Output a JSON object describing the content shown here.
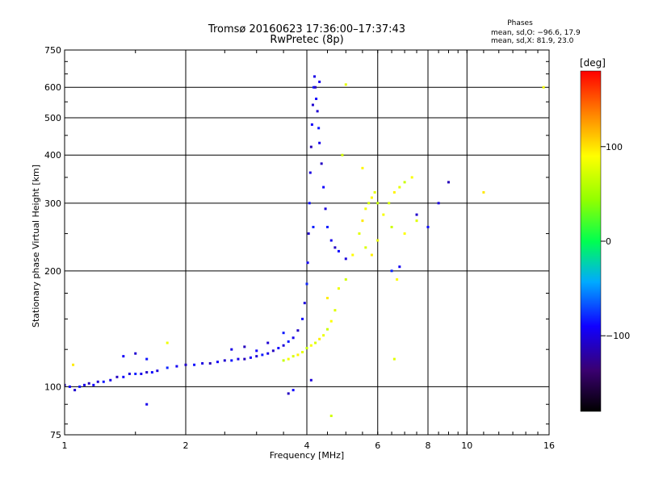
{
  "chart_data": {
    "type": "scatter",
    "title": "Tromsø 20160623 17:36:00–17:37:43",
    "subtitle": "RwPretec (8p)",
    "xlabel": "Frequency [MHz]",
    "ylabel": "Stationary phase Virtual Height [km]",
    "x_scale": "log",
    "y_scale": "log",
    "xlim": [
      1,
      16
    ],
    "ylim": [
      75,
      750
    ],
    "x_ticks": [
      1,
      2,
      4,
      6,
      8,
      10,
      16
    ],
    "x_tick_labels": [
      "1",
      "2",
      "4",
      "6",
      "8",
      "10",
      "16"
    ],
    "y_ticks": [
      75,
      100,
      200,
      300,
      400,
      500,
      600,
      750
    ],
    "y_tick_labels": [
      "75",
      "100",
      "200",
      "300",
      "400",
      "500",
      "600",
      "750"
    ],
    "grid": true,
    "stats_header": "Phases",
    "stats_lines": [
      "mean, sd,O: −96.6, 17.9",
      "mean, sd,X: 81.9, 23.0"
    ],
    "colorbar": {
      "title": "[deg]",
      "range": [
        -180,
        180
      ],
      "ticks": [
        100,
        0,
        -100
      ],
      "tick_labels": [
        "100",
        "0",
        "−100"
      ],
      "colormap": "rainbow"
    },
    "series": [
      {
        "mode": "O",
        "phase_mean": -96.6,
        "points": [
          [
            1.0,
            101
          ],
          [
            1.03,
            100
          ],
          [
            1.06,
            98
          ],
          [
            1.09,
            100
          ],
          [
            1.12,
            101
          ],
          [
            1.15,
            102
          ],
          [
            1.18,
            101
          ],
          [
            1.21,
            103
          ],
          [
            1.25,
            103
          ],
          [
            1.3,
            104
          ],
          [
            1.35,
            106
          ],
          [
            1.4,
            106
          ],
          [
            1.45,
            108
          ],
          [
            1.5,
            108
          ],
          [
            1.55,
            108
          ],
          [
            1.6,
            109
          ],
          [
            1.65,
            109
          ],
          [
            1.7,
            110
          ],
          [
            1.8,
            112
          ],
          [
            1.9,
            113
          ],
          [
            2.0,
            114
          ],
          [
            2.1,
            114
          ],
          [
            2.2,
            115
          ],
          [
            2.3,
            115
          ],
          [
            2.4,
            116
          ],
          [
            2.5,
            117
          ],
          [
            2.6,
            117
          ],
          [
            2.7,
            118
          ],
          [
            2.8,
            118
          ],
          [
            2.9,
            119
          ],
          [
            3.0,
            120
          ],
          [
            3.1,
            121
          ],
          [
            3.2,
            122
          ],
          [
            3.3,
            124
          ],
          [
            3.4,
            126
          ],
          [
            3.5,
            128
          ],
          [
            3.6,
            131
          ],
          [
            3.7,
            134
          ],
          [
            3.8,
            140
          ],
          [
            3.9,
            150
          ],
          [
            3.95,
            165
          ],
          [
            4.0,
            185
          ],
          [
            4.02,
            210
          ],
          [
            4.04,
            250
          ],
          [
            4.06,
            300
          ],
          [
            4.08,
            360
          ],
          [
            4.1,
            420
          ],
          [
            4.12,
            480
          ],
          [
            4.14,
            540
          ],
          [
            4.16,
            600
          ],
          [
            4.18,
            640
          ],
          [
            4.2,
            600
          ],
          [
            4.22,
            560
          ],
          [
            4.25,
            520
          ],
          [
            4.28,
            470
          ],
          [
            4.3,
            430
          ],
          [
            4.35,
            380
          ],
          [
            4.4,
            330
          ],
          [
            4.45,
            290
          ],
          [
            4.5,
            260
          ],
          [
            4.6,
            240
          ],
          [
            4.7,
            230
          ],
          [
            4.8,
            225
          ],
          [
            5.0,
            215
          ],
          [
            6.5,
            200
          ],
          [
            6.8,
            205
          ],
          [
            7.5,
            280
          ],
          [
            8.0,
            260
          ],
          [
            8.5,
            300
          ],
          [
            9.0,
            340
          ],
          [
            1.4,
            120
          ],
          [
            1.5,
            122
          ],
          [
            1.6,
            118
          ],
          [
            2.6,
            125
          ],
          [
            2.8,
            127
          ],
          [
            3.0,
            124
          ],
          [
            3.2,
            130
          ],
          [
            3.5,
            138
          ],
          [
            1.6,
            90
          ],
          [
            3.6,
            96
          ],
          [
            3.7,
            98
          ],
          [
            4.1,
            104
          ],
          [
            4.15,
            260
          ],
          [
            4.3,
            620
          ]
        ]
      },
      {
        "mode": "X",
        "phase_mean": 81.9,
        "points": [
          [
            3.5,
            117
          ],
          [
            3.6,
            118
          ],
          [
            3.7,
            120
          ],
          [
            3.8,
            121
          ],
          [
            3.9,
            123
          ],
          [
            4.0,
            126
          ],
          [
            4.1,
            128
          ],
          [
            4.2,
            130
          ],
          [
            4.3,
            133
          ],
          [
            4.4,
            136
          ],
          [
            4.5,
            141
          ],
          [
            4.6,
            148
          ],
          [
            4.7,
            158
          ],
          [
            4.5,
            170
          ],
          [
            4.8,
            180
          ],
          [
            5.0,
            190
          ],
          [
            5.2,
            220
          ],
          [
            5.4,
            250
          ],
          [
            5.5,
            270
          ],
          [
            5.6,
            290
          ],
          [
            5.7,
            300
          ],
          [
            5.8,
            310
          ],
          [
            5.9,
            320
          ],
          [
            6.0,
            300
          ],
          [
            6.2,
            280
          ],
          [
            6.4,
            300
          ],
          [
            6.6,
            320
          ],
          [
            6.8,
            330
          ],
          [
            7.0,
            340
          ],
          [
            7.3,
            350
          ],
          [
            5.6,
            230
          ],
          [
            5.8,
            220
          ],
          [
            6.0,
            240
          ],
          [
            6.5,
            260
          ],
          [
            7.0,
            250
          ],
          [
            7.5,
            270
          ],
          [
            1.05,
            114
          ],
          [
            1.8,
            130
          ],
          [
            4.6,
            84
          ],
          [
            6.7,
            190
          ],
          [
            6.6,
            118
          ],
          [
            11.0,
            320
          ],
          [
            15.5,
            600
          ],
          [
            4.9,
            400
          ],
          [
            5.5,
            370
          ],
          [
            5.0,
            610
          ]
        ]
      }
    ]
  }
}
